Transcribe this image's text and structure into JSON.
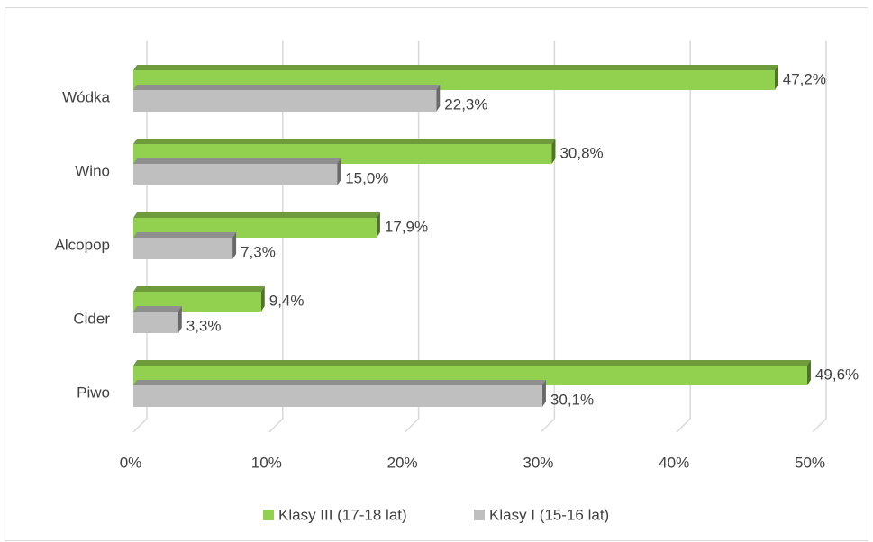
{
  "chart_data": {
    "type": "bar3d_horizontal",
    "categories": [
      "Wódka",
      "Wino",
      "Alcopop",
      "Cider",
      "Piwo"
    ],
    "series": [
      {
        "name": "Klasy III (17-18 lat)",
        "color": "#92d050",
        "values": [
          47.2,
          30.8,
          17.9,
          9.4,
          49.6
        ],
        "value_labels": [
          "47,2%",
          "30,8%",
          "17,9%",
          "9,4%",
          "49,6%"
        ]
      },
      {
        "name": "Klasy I (15-16 lat)",
        "color": "#bfbfbf",
        "values": [
          22.3,
          15.0,
          7.3,
          3.3,
          30.1
        ],
        "value_labels": [
          "22,3%",
          "15,0%",
          "7,3%",
          "3,3%",
          "30,1%"
        ]
      }
    ],
    "xlim": [
      0,
      50
    ],
    "xticks": [
      {
        "value": 0,
        "label": "0%"
      },
      {
        "value": 10,
        "label": "10%"
      },
      {
        "value": 20,
        "label": "20%"
      },
      {
        "value": 30,
        "label": "30%"
      },
      {
        "value": 40,
        "label": "40%"
      },
      {
        "value": 50,
        "label": "50%"
      }
    ],
    "grid": true,
    "legend": "bottom"
  }
}
